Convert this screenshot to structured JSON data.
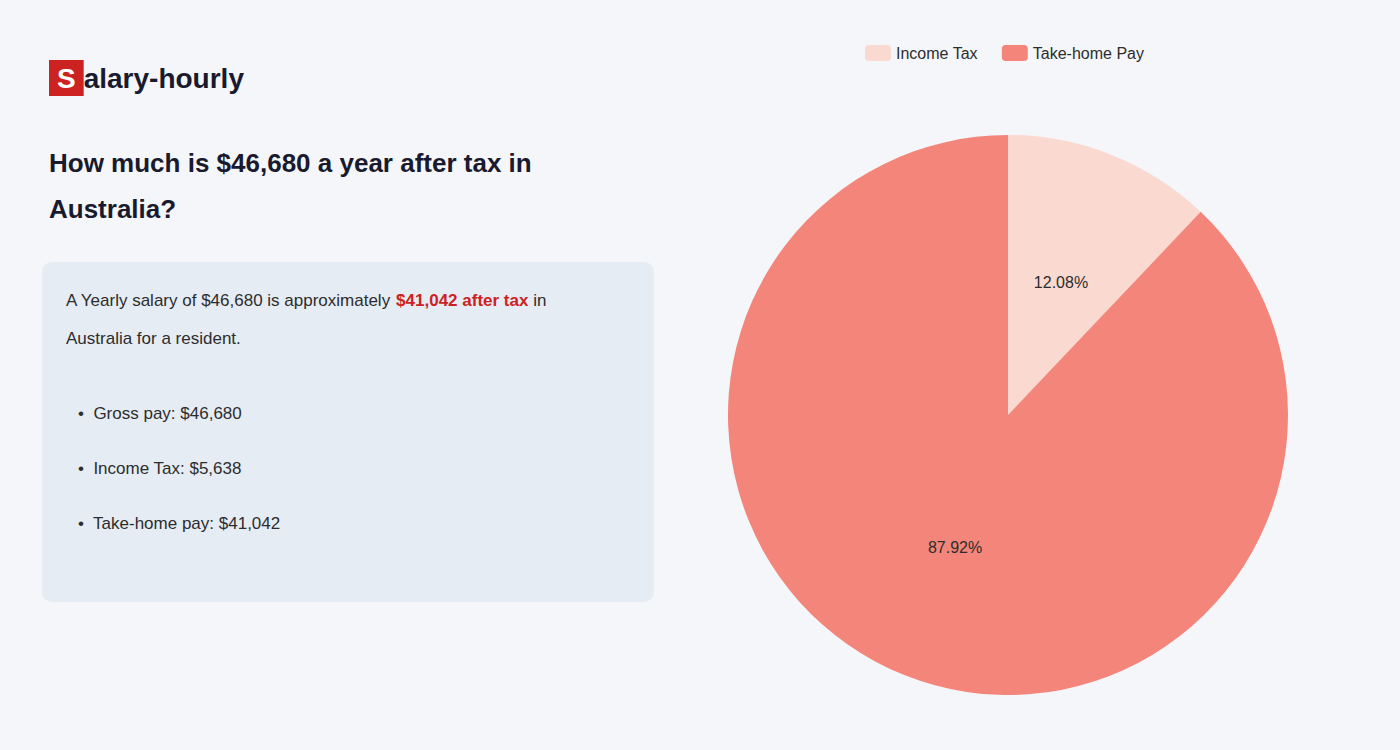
{
  "chart_data": {
    "type": "pie",
    "title": "How much is $46,680 a year after tax in\nAustralia?",
    "categories": [
      "Income Tax",
      "Take-home Pay"
    ],
    "values": [
      12.08,
      87.92
    ],
    "value_labels": [
      "12.08%",
      "87.92%"
    ],
    "colors": [
      "#f9d9d0",
      "#f4857a"
    ],
    "data_labels": true,
    "legend": "top",
    "annotations": [
      [
        {
          "text": "S",
          "color": "#ffffff",
          "background": "#cc2222"
        },
        {
          "text": "alary-hourly"
        }
      ],
      [
        {
          "text": "A Yearly salary of $46,680 is approximately "
        },
        {
          "text": "$41,042 after tax",
          "color": "#cc2222"
        },
        {
          "text": " in"
        }
      ],
      [
        {
          "text": "Australia for a resident."
        }
      ],
      [
        {
          "text": "•  Gross pay: $46,680"
        }
      ],
      [
        {
          "text": "•  Income Tax: $5,638"
        }
      ],
      [
        {
          "text": "•  Take-home pay: $41,042"
        }
      ]
    ]
  }
}
